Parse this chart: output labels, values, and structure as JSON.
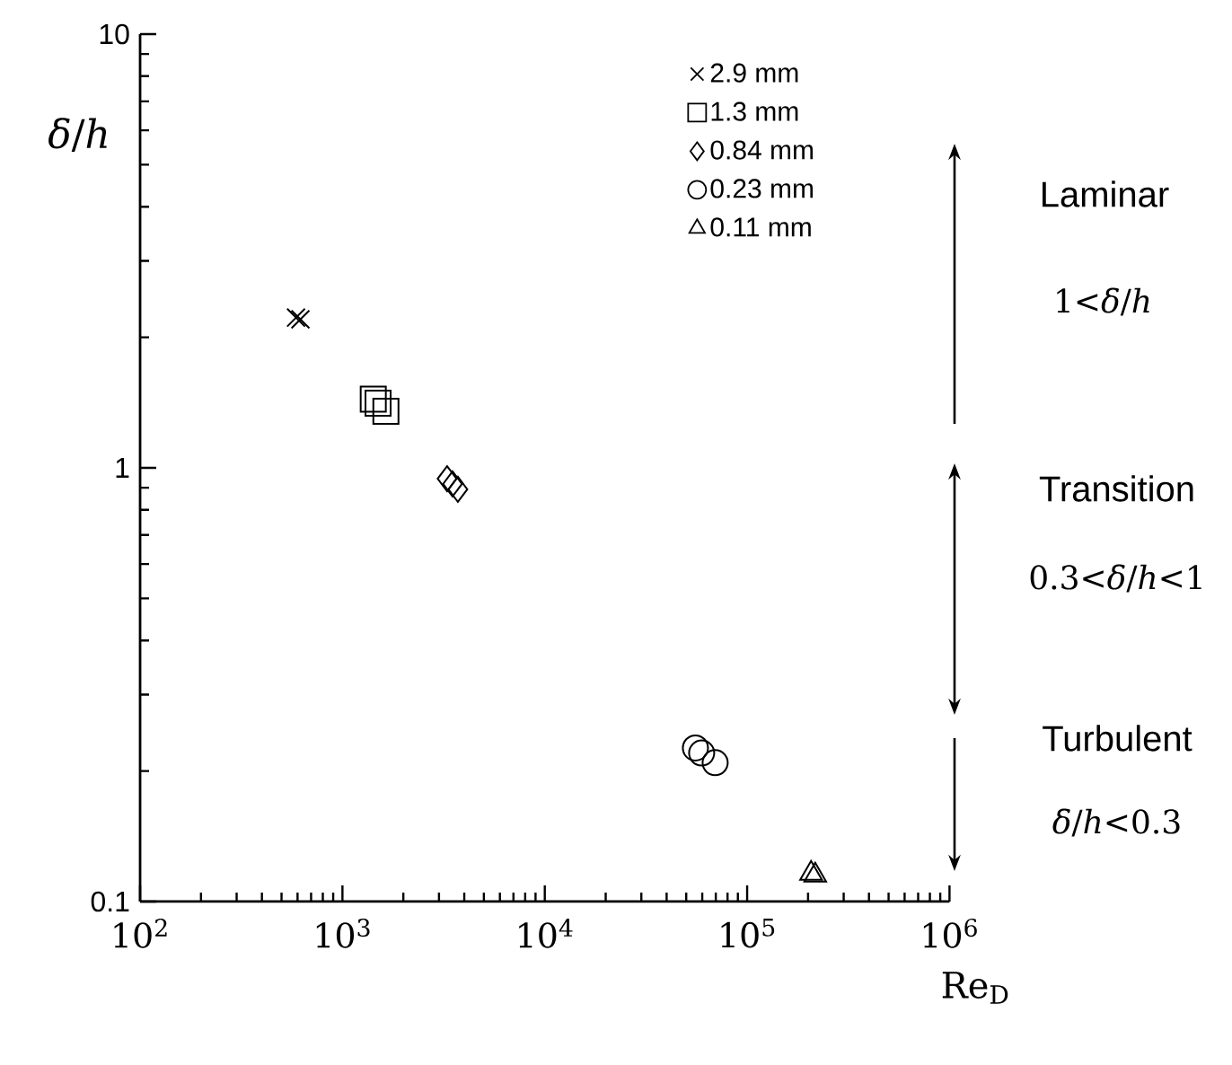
{
  "chart_data": {
    "type": "scatter",
    "xlabel": "Re$_{D}$",
    "ylabel": "*δ*/*h*",
    "log": "xy",
    "xlim": [
      100,
      1000000
    ],
    "ylim": [
      0.1,
      10
    ],
    "xticks": [
      {
        "value": 100,
        "label": "10$^{2}$"
      },
      {
        "value": 1000,
        "label": "10$^{3}$"
      },
      {
        "value": 10000,
        "label": "10$^{4}$"
      },
      {
        "value": 100000,
        "label": "10$^{5}$"
      },
      {
        "value": 1000000,
        "label": "10$^{6}$"
      }
    ],
    "yticks": [
      0.1,
      1,
      10
    ],
    "legend": "top right",
    "series": [
      {
        "name": "2.9 mm",
        "color": "#000000",
        "marker": "cross",
        "x": [
          590,
          620
        ],
        "values": [
          2.22,
          2.2
        ]
      },
      {
        "name": "1.3 mm",
        "color": "#000000",
        "marker": "square",
        "x": [
          1420,
          1500,
          1640
        ],
        "values": [
          1.44,
          1.41,
          1.35
        ]
      },
      {
        "name": "0.84 mm",
        "color": "#000000",
        "marker": "diamond",
        "x": [
          3290,
          3500,
          3720
        ],
        "values": [
          0.944,
          0.918,
          0.892
        ]
      },
      {
        "name": "0.23 mm",
        "color": "#000000",
        "marker": "circle",
        "x": [
          55500,
          59600,
          69500
        ],
        "values": [
          0.226,
          0.22,
          0.209
        ]
      },
      {
        "name": "0.11 mm",
        "color": "#000000",
        "marker": "triangle",
        "x": [
          207000,
          217000
        ],
        "values": [
          0.116,
          0.115
        ]
      }
    ],
    "annotations": [
      "Laminar",
      "1<*δ*/*h*",
      "Transition",
      "0.3<*δ*/*h*<1",
      "Turbulent",
      "*δ*/*h*<0.3"
    ]
  }
}
